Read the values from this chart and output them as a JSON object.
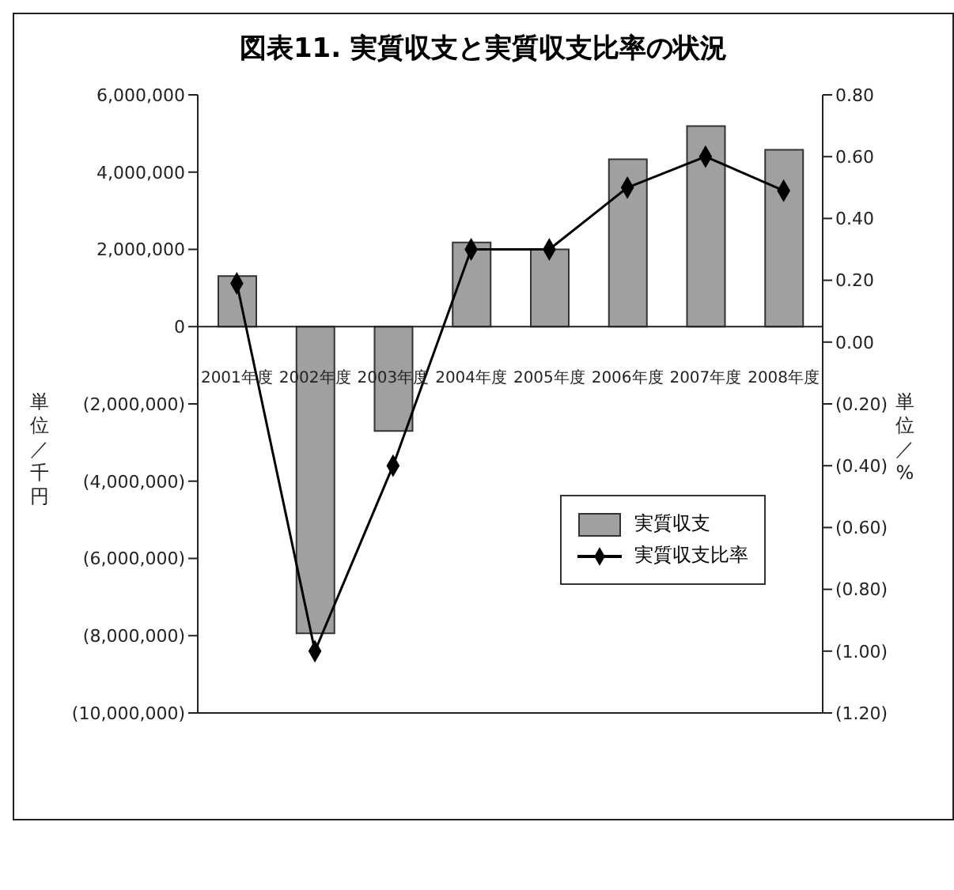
{
  "chart_data": {
    "type": "bar",
    "title": "図表11. 実質収支と実質収支比率の状況",
    "ylabel": "単位／千円",
    "y2label": "単位／%",
    "categories": [
      "2001年度",
      "2002年度",
      "2003年度",
      "2004年度",
      "2005年度",
      "2006年度",
      "2007年度",
      "2008年度"
    ],
    "series": [
      {
        "name": "実質収支",
        "color": "#a0a0a0",
        "values": [
          1310000,
          -7940000,
          -2700000,
          2180000,
          2000000,
          4330000,
          5190000,
          4580000
        ]
      },
      {
        "name": "実質収支比率",
        "type": "line",
        "axis": "y2",
        "color": "#000000",
        "values": [
          0.19,
          -1.0,
          -0.4,
          0.3,
          0.3,
          0.5,
          0.6,
          0.49
        ]
      }
    ],
    "ylim": [
      -10000000,
      6000000
    ],
    "yticks": [
      {
        "value": 6000000,
        "label": "6,000,000"
      },
      {
        "value": 4000000,
        "label": "4,000,000"
      },
      {
        "value": 2000000,
        "label": "2,000,000"
      },
      0,
      {
        "value": -2000000,
        "label": "(2,000,000)"
      },
      {
        "value": -4000000,
        "label": "(4,000,000)"
      },
      {
        "value": -6000000,
        "label": "(6,000,000)"
      },
      {
        "value": -8000000,
        "label": "(8,000,000)"
      },
      {
        "value": -10000000,
        "label": "(10,000,000)"
      }
    ],
    "y2lim": [
      -1.2,
      0.8
    ],
    "y2ticks": [
      {
        "value": 0.8,
        "label": "0.80"
      },
      {
        "value": 0.6,
        "label": "0.60"
      },
      {
        "value": 0.4,
        "label": "0.40"
      },
      {
        "value": 0.2,
        "label": "0.20"
      },
      {
        "value": 0,
        "label": "0.00"
      },
      {
        "value": -0.2,
        "label": "(0.20)"
      },
      {
        "value": -0.4,
        "label": "(0.40)"
      },
      {
        "value": -0.6,
        "label": "(0.60)"
      },
      {
        "value": -0.8,
        "label": "(0.80)"
      },
      {
        "value": -1.0,
        "label": "(1.00)"
      },
      {
        "value": -1.2,
        "label": "(1.20)"
      }
    ],
    "marker": "diamond",
    "legend": "right"
  }
}
